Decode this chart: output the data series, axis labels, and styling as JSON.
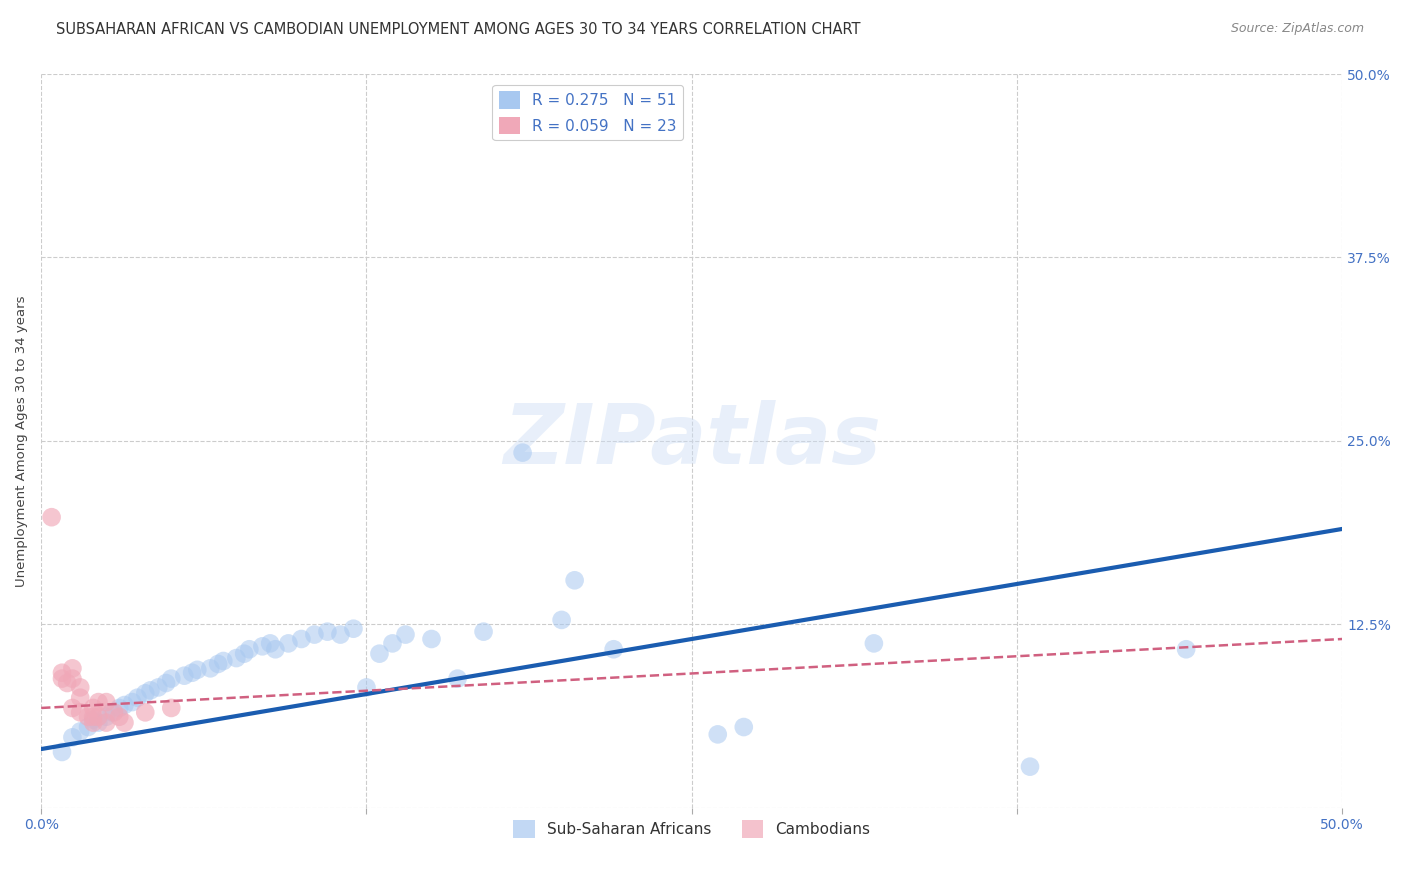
{
  "title": "SUBSAHARAN AFRICAN VS CAMBODIAN UNEMPLOYMENT AMONG AGES 30 TO 34 YEARS CORRELATION CHART",
  "source": "Source: ZipAtlas.com",
  "ylabel": "Unemployment Among Ages 30 to 34 years",
  "xlim": [
    0.0,
    0.5
  ],
  "ylim": [
    0.0,
    0.5
  ],
  "xticks": [
    0.0,
    0.125,
    0.25,
    0.375,
    0.5
  ],
  "yticks": [
    0.0,
    0.125,
    0.25,
    0.375,
    0.5
  ],
  "xticklabels": [
    "0.0%",
    "",
    "",
    "",
    "50.0%"
  ],
  "yticklabels_right": [
    "",
    "12.5%",
    "25.0%",
    "37.5%",
    "50.0%"
  ],
  "background_color": "#ffffff",
  "blue_scatter": [
    [
      0.008,
      0.038
    ],
    [
      0.012,
      0.048
    ],
    [
      0.015,
      0.052
    ],
    [
      0.018,
      0.055
    ],
    [
      0.02,
      0.06
    ],
    [
      0.022,
      0.058
    ],
    [
      0.025,
      0.062
    ],
    [
      0.027,
      0.065
    ],
    [
      0.03,
      0.068
    ],
    [
      0.032,
      0.07
    ],
    [
      0.035,
      0.072
    ],
    [
      0.037,
      0.075
    ],
    [
      0.04,
      0.078
    ],
    [
      0.042,
      0.08
    ],
    [
      0.045,
      0.082
    ],
    [
      0.048,
      0.085
    ],
    [
      0.05,
      0.088
    ],
    [
      0.055,
      0.09
    ],
    [
      0.058,
      0.092
    ],
    [
      0.06,
      0.094
    ],
    [
      0.065,
      0.095
    ],
    [
      0.068,
      0.098
    ],
    [
      0.07,
      0.1
    ],
    [
      0.075,
      0.102
    ],
    [
      0.078,
      0.105
    ],
    [
      0.08,
      0.108
    ],
    [
      0.085,
      0.11
    ],
    [
      0.088,
      0.112
    ],
    [
      0.09,
      0.108
    ],
    [
      0.095,
      0.112
    ],
    [
      0.1,
      0.115
    ],
    [
      0.105,
      0.118
    ],
    [
      0.11,
      0.12
    ],
    [
      0.115,
      0.118
    ],
    [
      0.12,
      0.122
    ],
    [
      0.125,
      0.082
    ],
    [
      0.13,
      0.105
    ],
    [
      0.135,
      0.112
    ],
    [
      0.14,
      0.118
    ],
    [
      0.15,
      0.115
    ],
    [
      0.16,
      0.088
    ],
    [
      0.17,
      0.12
    ],
    [
      0.185,
      0.242
    ],
    [
      0.2,
      0.128
    ],
    [
      0.205,
      0.155
    ],
    [
      0.22,
      0.108
    ],
    [
      0.26,
      0.05
    ],
    [
      0.27,
      0.055
    ],
    [
      0.32,
      0.112
    ],
    [
      0.38,
      0.028
    ],
    [
      0.44,
      0.108
    ]
  ],
  "pink_scatter": [
    [
      0.004,
      0.198
    ],
    [
      0.008,
      0.092
    ],
    [
      0.008,
      0.088
    ],
    [
      0.01,
      0.085
    ],
    [
      0.012,
      0.095
    ],
    [
      0.012,
      0.088
    ],
    [
      0.012,
      0.068
    ],
    [
      0.015,
      0.082
    ],
    [
      0.015,
      0.075
    ],
    [
      0.015,
      0.065
    ],
    [
      0.018,
      0.062
    ],
    [
      0.02,
      0.068
    ],
    [
      0.02,
      0.062
    ],
    [
      0.02,
      0.058
    ],
    [
      0.022,
      0.072
    ],
    [
      0.022,
      0.062
    ],
    [
      0.025,
      0.058
    ],
    [
      0.025,
      0.072
    ],
    [
      0.028,
      0.065
    ],
    [
      0.03,
      0.062
    ],
    [
      0.032,
      0.058
    ],
    [
      0.04,
      0.065
    ],
    [
      0.05,
      0.068
    ]
  ],
  "blue_line_x": [
    0.0,
    0.5
  ],
  "blue_line_y": [
    0.04,
    0.19
  ],
  "pink_line_x": [
    0.0,
    0.5
  ],
  "pink_line_y": [
    0.068,
    0.115
  ],
  "grid_color": "#cccccc",
  "blue_color": "#a8c8f0",
  "pink_color": "#f0a8b8",
  "blue_line_color": "#1a5cb0",
  "pink_line_color": "#d06080",
  "title_fontsize": 10.5,
  "axis_label_fontsize": 9.5,
  "tick_fontsize": 10,
  "legend_fontsize": 11,
  "marker_size": 180
}
